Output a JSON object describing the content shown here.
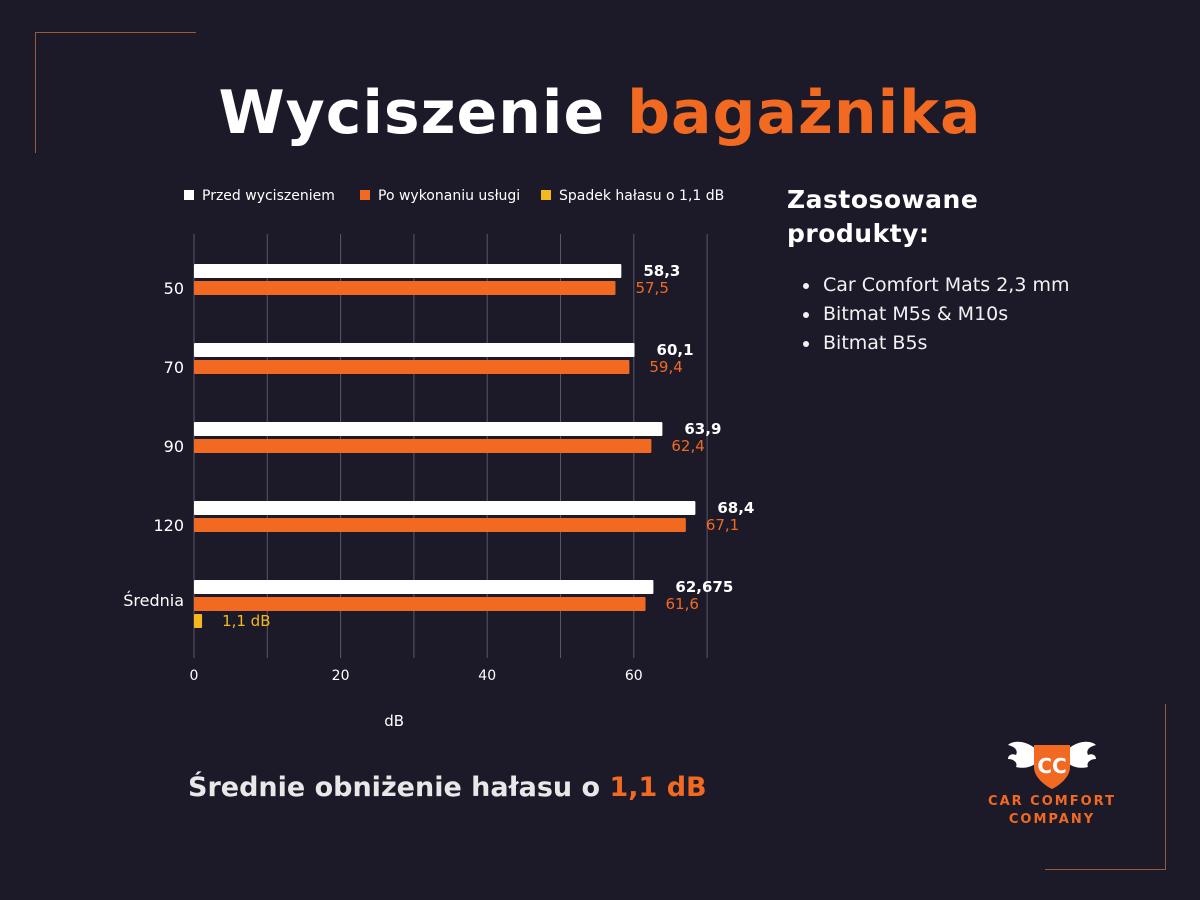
{
  "title": {
    "part1": "Wyciszenie",
    "part2": "bagażnika"
  },
  "chart_data": {
    "type": "bar",
    "orientation": "horizontal",
    "categories": [
      "50",
      "70",
      "90",
      "120",
      "Średnia"
    ],
    "series": [
      {
        "name": "Przed wyciszeniem",
        "color": "#ffffff",
        "label_color": "#ffffff",
        "values": [
          58.3,
          60.1,
          63.9,
          68.4,
          62.675
        ],
        "labels": [
          "58,3",
          "60,1",
          "63,9",
          "68,4",
          "62,675"
        ]
      },
      {
        "name": "Po wykonaniu usługi",
        "color": "#f26a21",
        "label_color": "#f26a21",
        "values": [
          57.5,
          59.4,
          62.4,
          67.1,
          61.6
        ],
        "labels": [
          "57,5",
          "59,4",
          "62,4",
          "67,1",
          "61,6"
        ]
      },
      {
        "name": "Spadek hałasu o 1,1 dB",
        "color": "#f5b81c",
        "label_color": "#f5b81c",
        "values": [
          null,
          null,
          null,
          null,
          1.1
        ],
        "labels": [
          "",
          "",
          "",
          "",
          "1,1 dB"
        ]
      }
    ],
    "xlabel": "dB",
    "ylabel": "",
    "xlim": [
      0,
      70
    ],
    "xticks": [
      "0",
      "20",
      "40",
      "60"
    ],
    "grid": true,
    "legend_position": "top"
  },
  "products": {
    "heading_line1": "Zastosowane",
    "heading_line2": "produkty:",
    "items": [
      "Car Comfort Mats 2,3 mm",
      "Bitmat M5s & M10s",
      "Bitmat B5s"
    ]
  },
  "summary": {
    "text": "Średnie obniżenie hałasu o",
    "highlight": "1,1 dB"
  },
  "logo": {
    "monogram": "CC",
    "line1": "CAR COMFORT",
    "line2": "COMPANY"
  }
}
